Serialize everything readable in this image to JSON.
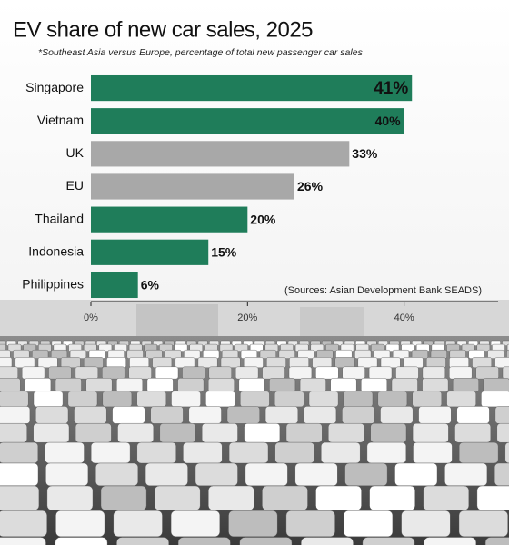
{
  "chart_data": {
    "type": "bar",
    "orientation": "horizontal",
    "title": "EV share of new car sales, 2025",
    "subtitle": "*Southeast Asia versus Europe, percentage of total new passenger car sales",
    "source": "(Sources: Asian Development Bank SEADS)",
    "categories": [
      "Singapore",
      "Vietnam",
      "UK",
      "EU",
      "Thailand",
      "Indonesia",
      "Philippines"
    ],
    "values": [
      41,
      40,
      33,
      26,
      20,
      15,
      6
    ],
    "value_labels": [
      "41%",
      "40%",
      "33%",
      "26%",
      "20%",
      "15%",
      "6%"
    ],
    "colors": [
      "#1f7d5a",
      "#1f7d5a",
      "#a8a8a8",
      "#a8a8a8",
      "#1f7d5a",
      "#1f7d5a",
      "#1f7d5a"
    ],
    "xlim": [
      0,
      52
    ],
    "xticks": [
      {
        "value": 0,
        "label": "0%"
      },
      {
        "value": 20,
        "label": "20%"
      },
      {
        "value": 40,
        "label": "40%"
      }
    ]
  }
}
